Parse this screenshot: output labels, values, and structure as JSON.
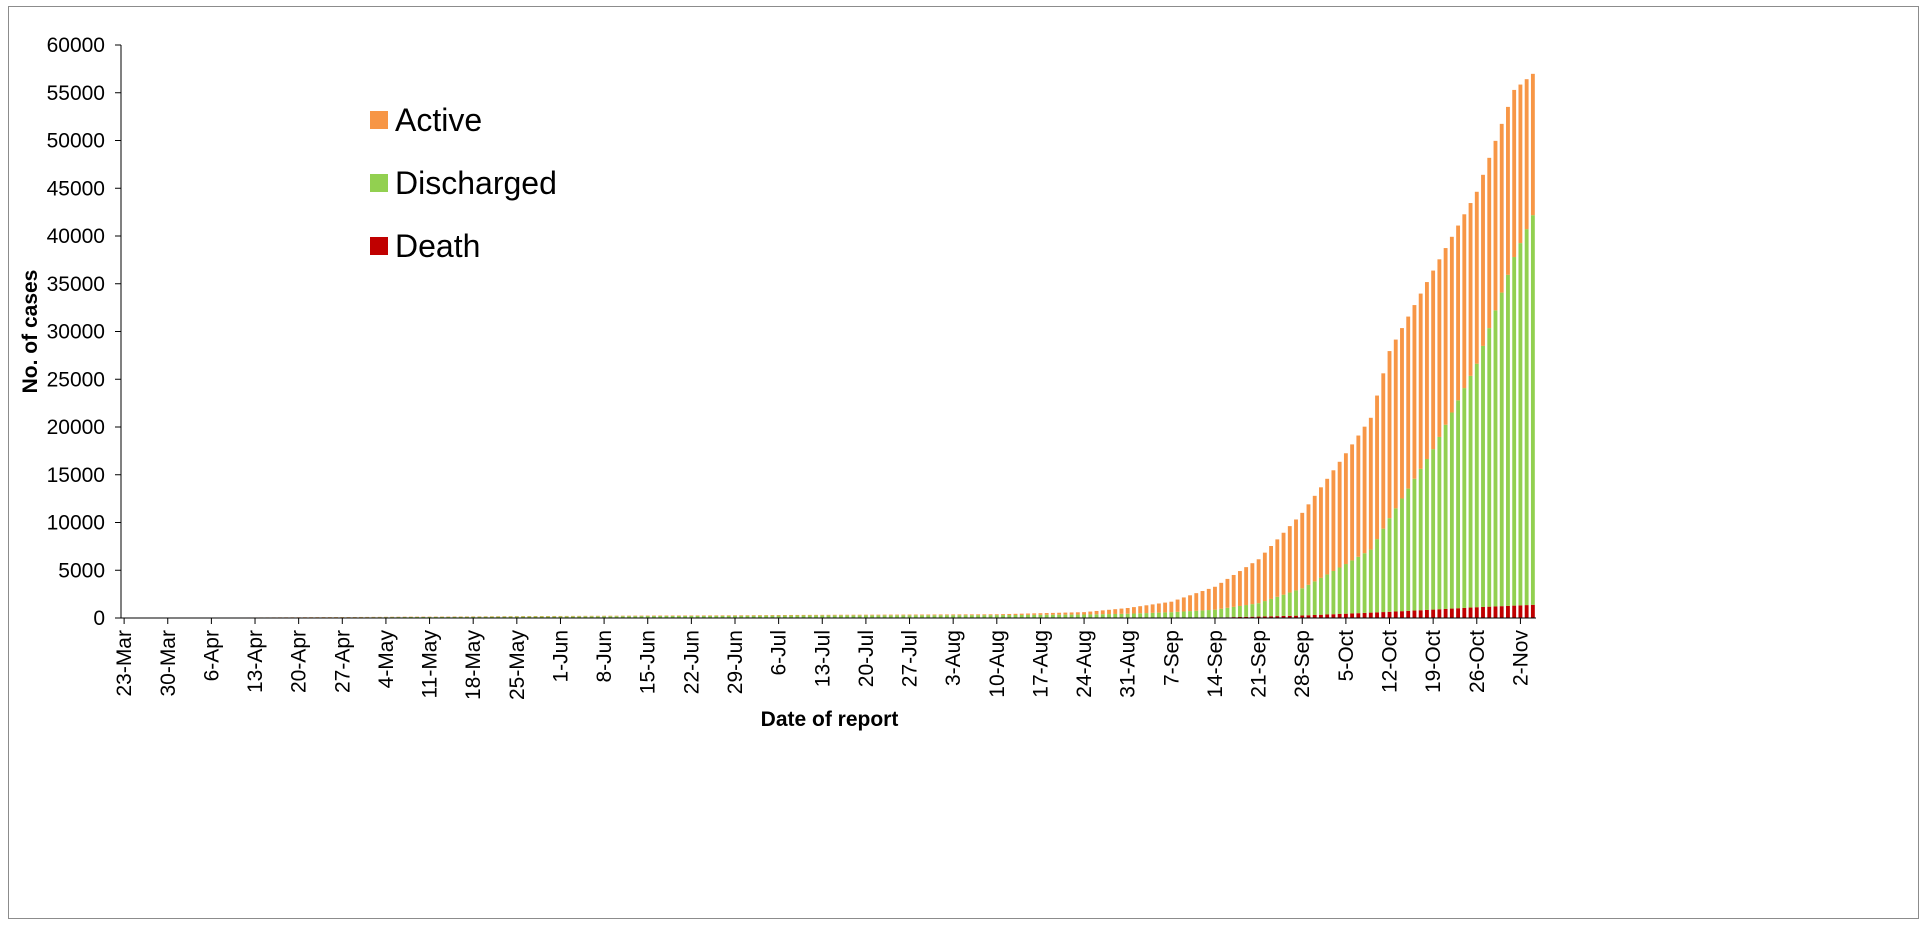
{
  "chart_data": {
    "type": "bar",
    "stacked": true,
    "title": "",
    "xlabel": "Date of report",
    "ylabel": "No. of cases",
    "ylim": [
      0,
      60000
    ],
    "yticks": [
      0,
      5000,
      10000,
      15000,
      20000,
      25000,
      30000,
      35000,
      40000,
      45000,
      50000,
      55000,
      60000
    ],
    "x_start": "2020-03-23",
    "x_end": "2020-11-04",
    "xticks": [
      "23-Mar",
      "30-Mar",
      "6-Apr",
      "13-Apr",
      "20-Apr",
      "27-Apr",
      "4-May",
      "11-May",
      "18-May",
      "25-May",
      "1-Jun",
      "8-Jun",
      "15-Jun",
      "22-Jun",
      "29-Jun",
      "6-Jul",
      "13-Jul",
      "20-Jul",
      "27-Jul",
      "3-Aug",
      "10-Aug",
      "17-Aug",
      "24-Aug",
      "31-Aug",
      "7-Sep",
      "14-Sep",
      "21-Sep",
      "28-Sep",
      "5-Oct",
      "12-Oct",
      "19-Oct",
      "26-Oct",
      "2-Nov"
    ],
    "legend_position": "top-left",
    "grid": false,
    "series": [
      {
        "name": "Death",
        "color": "#c00000",
        "points": [
          [
            "2020-03-23",
            0
          ],
          [
            "2020-09-14",
            50
          ],
          [
            "2020-09-21",
            150
          ],
          [
            "2020-09-28",
            260
          ],
          [
            "2020-10-05",
            450
          ],
          [
            "2020-10-12",
            650
          ],
          [
            "2020-10-19",
            880
          ],
          [
            "2020-10-26",
            1130
          ],
          [
            "2020-11-04",
            1380
          ]
        ]
      },
      {
        "name": "Discharged",
        "color": "#92d050",
        "points": [
          [
            "2020-03-23",
            0
          ],
          [
            "2020-04-20",
            40
          ],
          [
            "2020-05-18",
            120
          ],
          [
            "2020-06-15",
            180
          ],
          [
            "2020-07-13",
            240
          ],
          [
            "2020-08-10",
            260
          ],
          [
            "2020-08-24",
            320
          ],
          [
            "2020-08-31",
            400
          ],
          [
            "2020-09-07",
            560
          ],
          [
            "2020-09-14",
            820
          ],
          [
            "2020-09-21",
            1400
          ],
          [
            "2020-09-28",
            2850
          ],
          [
            "2020-10-05",
            5200
          ],
          [
            "2020-10-09",
            6600
          ],
          [
            "2020-10-12",
            9800
          ],
          [
            "2020-10-19",
            16800
          ],
          [
            "2020-10-26",
            25500
          ],
          [
            "2020-11-01",
            36500
          ],
          [
            "2020-11-04",
            40800
          ]
        ]
      },
      {
        "name": "Active",
        "color": "#f79646",
        "points": [
          [
            "2020-03-23",
            5
          ],
          [
            "2020-04-20",
            25
          ],
          [
            "2020-05-18",
            40
          ],
          [
            "2020-06-15",
            50
          ],
          [
            "2020-07-13",
            60
          ],
          [
            "2020-08-10",
            90
          ],
          [
            "2020-08-24",
            250
          ],
          [
            "2020-08-31",
            600
          ],
          [
            "2020-09-07",
            1100
          ],
          [
            "2020-09-14",
            2400
          ],
          [
            "2020-09-21",
            4600
          ],
          [
            "2020-09-28",
            7900
          ],
          [
            "2020-10-05",
            11600
          ],
          [
            "2020-10-09",
            13800
          ],
          [
            "2020-10-12",
            17500
          ],
          [
            "2020-10-19",
            18700
          ],
          [
            "2020-10-26",
            18000
          ],
          [
            "2020-11-01",
            17500
          ],
          [
            "2020-11-04",
            14800
          ]
        ]
      }
    ]
  }
}
